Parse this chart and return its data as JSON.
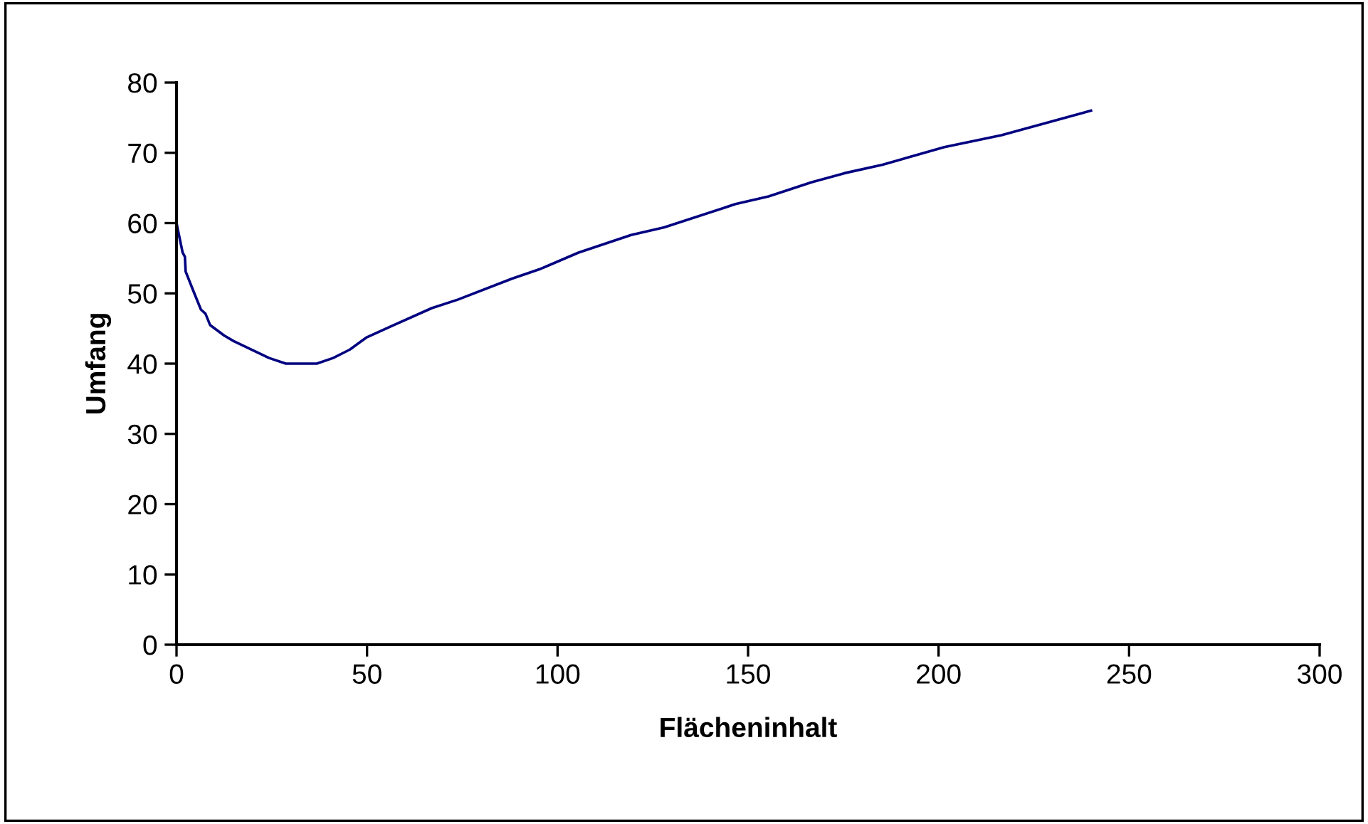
{
  "chart_data": {
    "type": "line",
    "xlabel": "Flächeninhalt",
    "ylabel": "Umfang",
    "x": [
      0,
      1.6,
      2.2,
      2.4,
      4.6,
      6.4,
      7.6,
      8.8,
      12.5,
      15,
      24.3,
      28.7,
      36.8,
      41.1,
      45.5,
      49.8,
      56.7,
      67,
      73.8,
      88.1,
      95.6,
      105.5,
      119.3,
      128,
      146.7,
      155.4,
      166.6,
      175.3,
      185.3,
      201.5,
      216.5,
      240
    ],
    "series": [
      {
        "color": "#000080",
        "values": [
          60,
          55.8,
          55.2,
          53.1,
          50.1,
          47.7,
          47.1,
          45.5,
          44,
          43.2,
          40.8,
          40,
          40,
          40.8,
          42,
          43.7,
          45.4,
          47.9,
          49.1,
          52.1,
          53.5,
          55.8,
          58.3,
          59.4,
          62.7,
          63.8,
          65.8,
          67.1,
          68.3,
          70.8,
          72.5,
          76
        ]
      }
    ],
    "xlim": [
      0,
      300
    ],
    "ylim": [
      0,
      80
    ],
    "xticks": [
      0,
      50,
      100,
      150,
      200,
      250,
      300
    ],
    "yticks": [
      0,
      10,
      20,
      30,
      40,
      50,
      60,
      70,
      80
    ],
    "grid": false,
    "legend": false,
    "marker": "none",
    "line_style": "solid"
  }
}
